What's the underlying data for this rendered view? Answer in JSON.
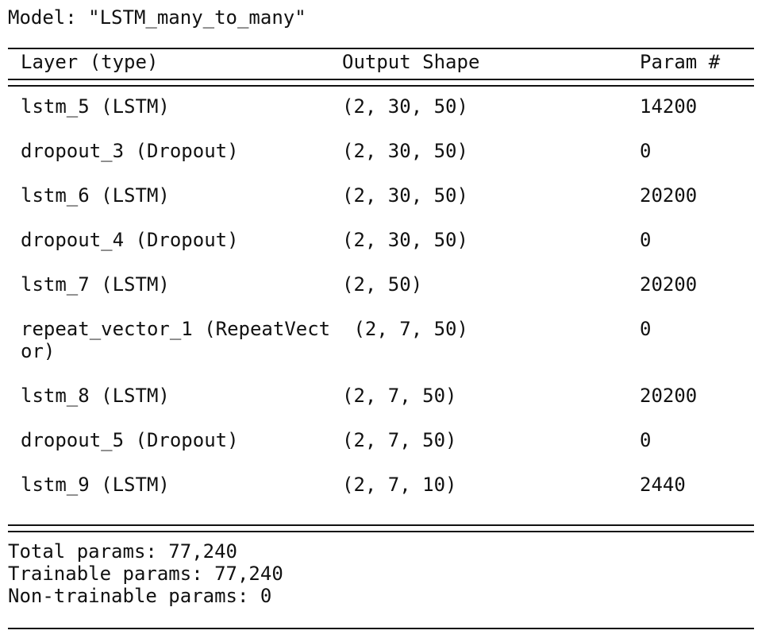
{
  "model_title": "Model: \"LSTM_many_to_many\"",
  "columns": {
    "layer": "Layer (type)",
    "output_shape": "Output Shape",
    "params": "Param #"
  },
  "layers": [
    {
      "layer": "lstm_5 (LSTM)",
      "output_shape": "(2, 30, 50)",
      "params": "14200"
    },
    {
      "layer": "dropout_3 (Dropout)",
      "output_shape": "(2, 30, 50)",
      "params": "0"
    },
    {
      "layer": "lstm_6 (LSTM)",
      "output_shape": "(2, 30, 50)",
      "params": "20200"
    },
    {
      "layer": "dropout_4 (Dropout)",
      "output_shape": "(2, 30, 50)",
      "params": "0"
    },
    {
      "layer": "lstm_7 (LSTM)",
      "output_shape": "(2, 50)",
      "params": "20200"
    },
    {
      "layer": "repeat_vector_1 (RepeatVect\nor)",
      "output_shape": " (2, 7, 50)",
      "params": "0"
    },
    {
      "layer": "lstm_8 (LSTM)",
      "output_shape": "(2, 7, 50)",
      "params": "20200"
    },
    {
      "layer": "dropout_5 (Dropout)",
      "output_shape": "(2, 7, 50)",
      "params": "0"
    },
    {
      "layer": "lstm_9 (LSTM)",
      "output_shape": "(2, 7, 10)",
      "params": "2440"
    }
  ],
  "summary": {
    "total": "Total params: 77,240",
    "trainable": "Trainable params: 77,240",
    "non_trainable": "Non-trainable params: 0"
  }
}
